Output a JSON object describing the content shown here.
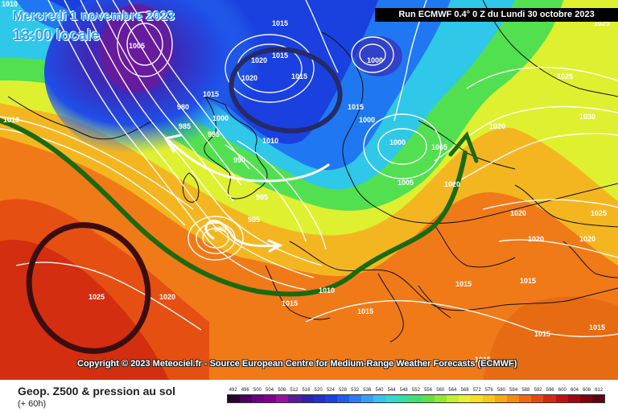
{
  "header": {
    "date": "Mercredi 1 novembre 2023",
    "local_time": "13:00 locale",
    "run": "Run ECMWF 0.4° 0 Z du Lundi 30 octobre 2023"
  },
  "copyright": "Copyright © 2023 Meteociel.fr - Source European Centre for Medium-Range Weather Forecasts (ECMWF)",
  "footer": {
    "title": "Geop. Z500 & pression au sol",
    "subtitle": "(+ 60h)"
  },
  "legend": {
    "values": [
      "492",
      "496",
      "500",
      "504",
      "508",
      "512",
      "516",
      "520",
      "524",
      "528",
      "532",
      "536",
      "540",
      "544",
      "548",
      "552",
      "556",
      "560",
      "564",
      "568",
      "572",
      "576",
      "580",
      "584",
      "588",
      "592",
      "596",
      "600",
      "604",
      "608",
      "612"
    ],
    "colors": [
      "#2a0030",
      "#4a0060",
      "#6a0080",
      "#800090",
      "#9a10a0",
      "#5a1a9a",
      "#3020b0",
      "#2030c8",
      "#1a40e0",
      "#1f5cf0",
      "#2a7cf5",
      "#35a0f5",
      "#38c0f0",
      "#30d8d0",
      "#30e0a0",
      "#40e070",
      "#60e040",
      "#90e830",
      "#c0f030",
      "#e8f030",
      "#f8e020",
      "#f8c818",
      "#f8a810",
      "#f88810",
      "#f06810",
      "#e84810",
      "#d82810",
      "#c01010",
      "#a00810",
      "#800010",
      "#600010"
    ]
  },
  "isobars": [
    "1010",
    "1010",
    "1025",
    "1020",
    "1015",
    "1015",
    "1020",
    "1015",
    "1015",
    "1020",
    "1005",
    "1000",
    "1000",
    "1005",
    "990",
    "985",
    "980",
    "985",
    "980",
    "985",
    "995",
    "1000",
    "1010",
    "1015",
    "1010",
    "1015",
    "1000",
    "1005",
    "1015",
    "1025",
    "1020",
    "1020",
    "1020",
    "1025",
    "1030",
    "1015",
    "1020",
    "1015",
    "1015",
    "1015",
    "1015",
    "1025",
    "1020"
  ],
  "colors": {
    "accent": "#2aa3f0",
    "high_marker": "#3a0e10",
    "low_marker": "#262a66",
    "flow_arrow": "#1a6a10"
  }
}
